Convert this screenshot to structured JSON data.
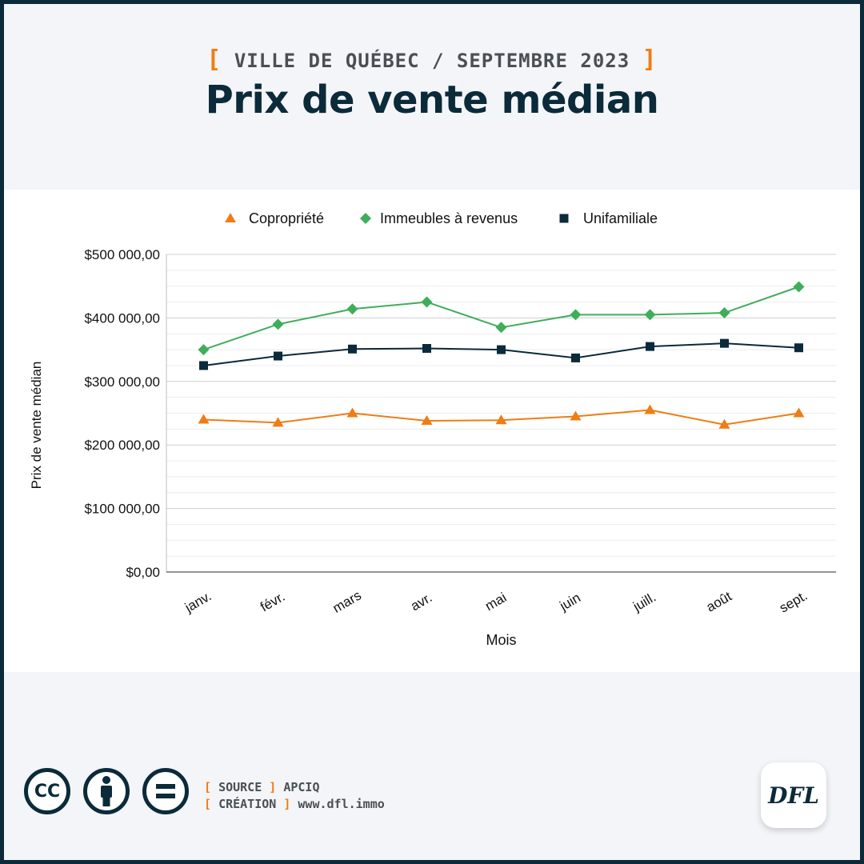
{
  "header": {
    "bracket_open": "[",
    "kicker": "VILLE DE QUÉBEC / SEPTEMBRE 2023",
    "bracket_close": "]",
    "title": "Prix de vente médian"
  },
  "chart_data": {
    "type": "line",
    "title": "Prix de vente médian",
    "subtitle": "VILLE DE QUÉBEC / SEPTEMBRE 2023",
    "xlabel": "Mois",
    "ylabel": "Prix de vente médian",
    "categories": [
      "janv.",
      "févr.",
      "mars",
      "avr.",
      "mai",
      "juin",
      "juill.",
      "août",
      "sept."
    ],
    "ylim": [
      0,
      500000
    ],
    "yticks": [
      0,
      100000,
      200000,
      300000,
      400000,
      500000
    ],
    "ytick_labels": [
      "$0,00",
      "$100 000,00",
      "$200 000,00",
      "$300 000,00",
      "$400 000,00",
      "$500 000,00"
    ],
    "grid": true,
    "legend_position": "top",
    "series": [
      {
        "name": "Copropriété",
        "color": "#f07c14",
        "marker": "triangle",
        "values": [
          240000,
          235000,
          250000,
          238000,
          239000,
          245000,
          255000,
          232000,
          250000
        ]
      },
      {
        "name": "Immeubles à revenus",
        "color": "#3fae5a",
        "marker": "diamond",
        "values": [
          350000,
          390000,
          414000,
          425000,
          385000,
          405000,
          405000,
          408000,
          449000
        ]
      },
      {
        "name": "Unifamiliale",
        "color": "#0b2a3a",
        "marker": "square",
        "values": [
          325000,
          340000,
          351000,
          352000,
          350000,
          337000,
          355000,
          360000,
          353000
        ]
      }
    ]
  },
  "footer": {
    "license_icons": [
      "cc-icon",
      "attribution-icon",
      "no-derivatives-icon"
    ],
    "cc_label": "CC",
    "source_label": "SOURCE",
    "source_value": "APCIQ",
    "creation_label": "CRÉATION",
    "creation_value": "www.dfl.immo",
    "bracket_open": "[",
    "bracket_close": "]",
    "logo_text": "DFL"
  }
}
